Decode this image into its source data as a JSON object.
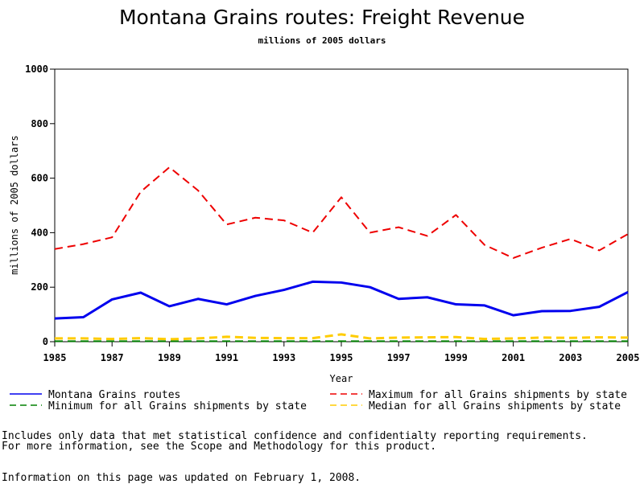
{
  "chart_data": {
    "type": "line",
    "title": "Montana Grains routes: Freight Revenue",
    "subtitle": "millions of 2005 dollars",
    "xlabel": "Year",
    "ylabel": "millions of 2005 dollars",
    "xlim": [
      1985,
      2005
    ],
    "ylim": [
      0,
      1000
    ],
    "x_ticks": [
      "1985",
      "1987",
      "1989",
      "1991",
      "1993",
      "1995",
      "1997",
      "1999",
      "2001",
      "2003",
      "2005"
    ],
    "y_ticks": [
      "0",
      "200",
      "400",
      "600",
      "800",
      "1000"
    ],
    "x": [
      1985,
      1986,
      1987,
      1988,
      1989,
      1990,
      1991,
      1992,
      1993,
      1994,
      1995,
      1996,
      1997,
      1998,
      1999,
      2000,
      2001,
      2002,
      2003,
      2004,
      2005
    ],
    "series": [
      {
        "name": "Montana Grains routes",
        "color": "#0000ee",
        "style": "solid",
        "values": [
          85,
          90,
          155,
          180,
          130,
          157,
          137,
          168,
          190,
          220,
          217,
          200,
          157,
          163,
          137,
          133,
          97,
          112,
          113,
          128,
          182
        ]
      },
      {
        "name": "Maximum for all Grains shipments by state",
        "color": "#ee0000",
        "style": "dashed",
        "values": [
          340,
          358,
          383,
          550,
          640,
          555,
          430,
          455,
          445,
          400,
          530,
          400,
          420,
          388,
          465,
          355,
          307,
          345,
          377,
          335,
          395
        ]
      },
      {
        "name": "Minimum for all Grains shipments by state",
        "color": "#008000",
        "style": "dashed",
        "values": [
          2,
          2,
          2,
          2,
          2,
          2,
          2,
          2,
          2,
          2,
          2,
          2,
          2,
          2,
          2,
          2,
          2,
          2,
          2,
          2,
          2
        ]
      },
      {
        "name": "Median for all Grains shipments by state",
        "color": "#ffcc00",
        "style": "dashed",
        "values": [
          12,
          12,
          10,
          13,
          9,
          12,
          18,
          14,
          13,
          13,
          27,
          12,
          15,
          16,
          17,
          10,
          12,
          15,
          14,
          16,
          15
        ]
      }
    ],
    "grid": false,
    "legend_position": "bottom"
  },
  "notes": {
    "line1": "Includes only data that met statistical confidence and confidentialty reporting requirements.",
    "line2": "For more information, see the Scope and Methodology for this product.",
    "line3": "Information on this page was updated on February 1, 2008."
  }
}
